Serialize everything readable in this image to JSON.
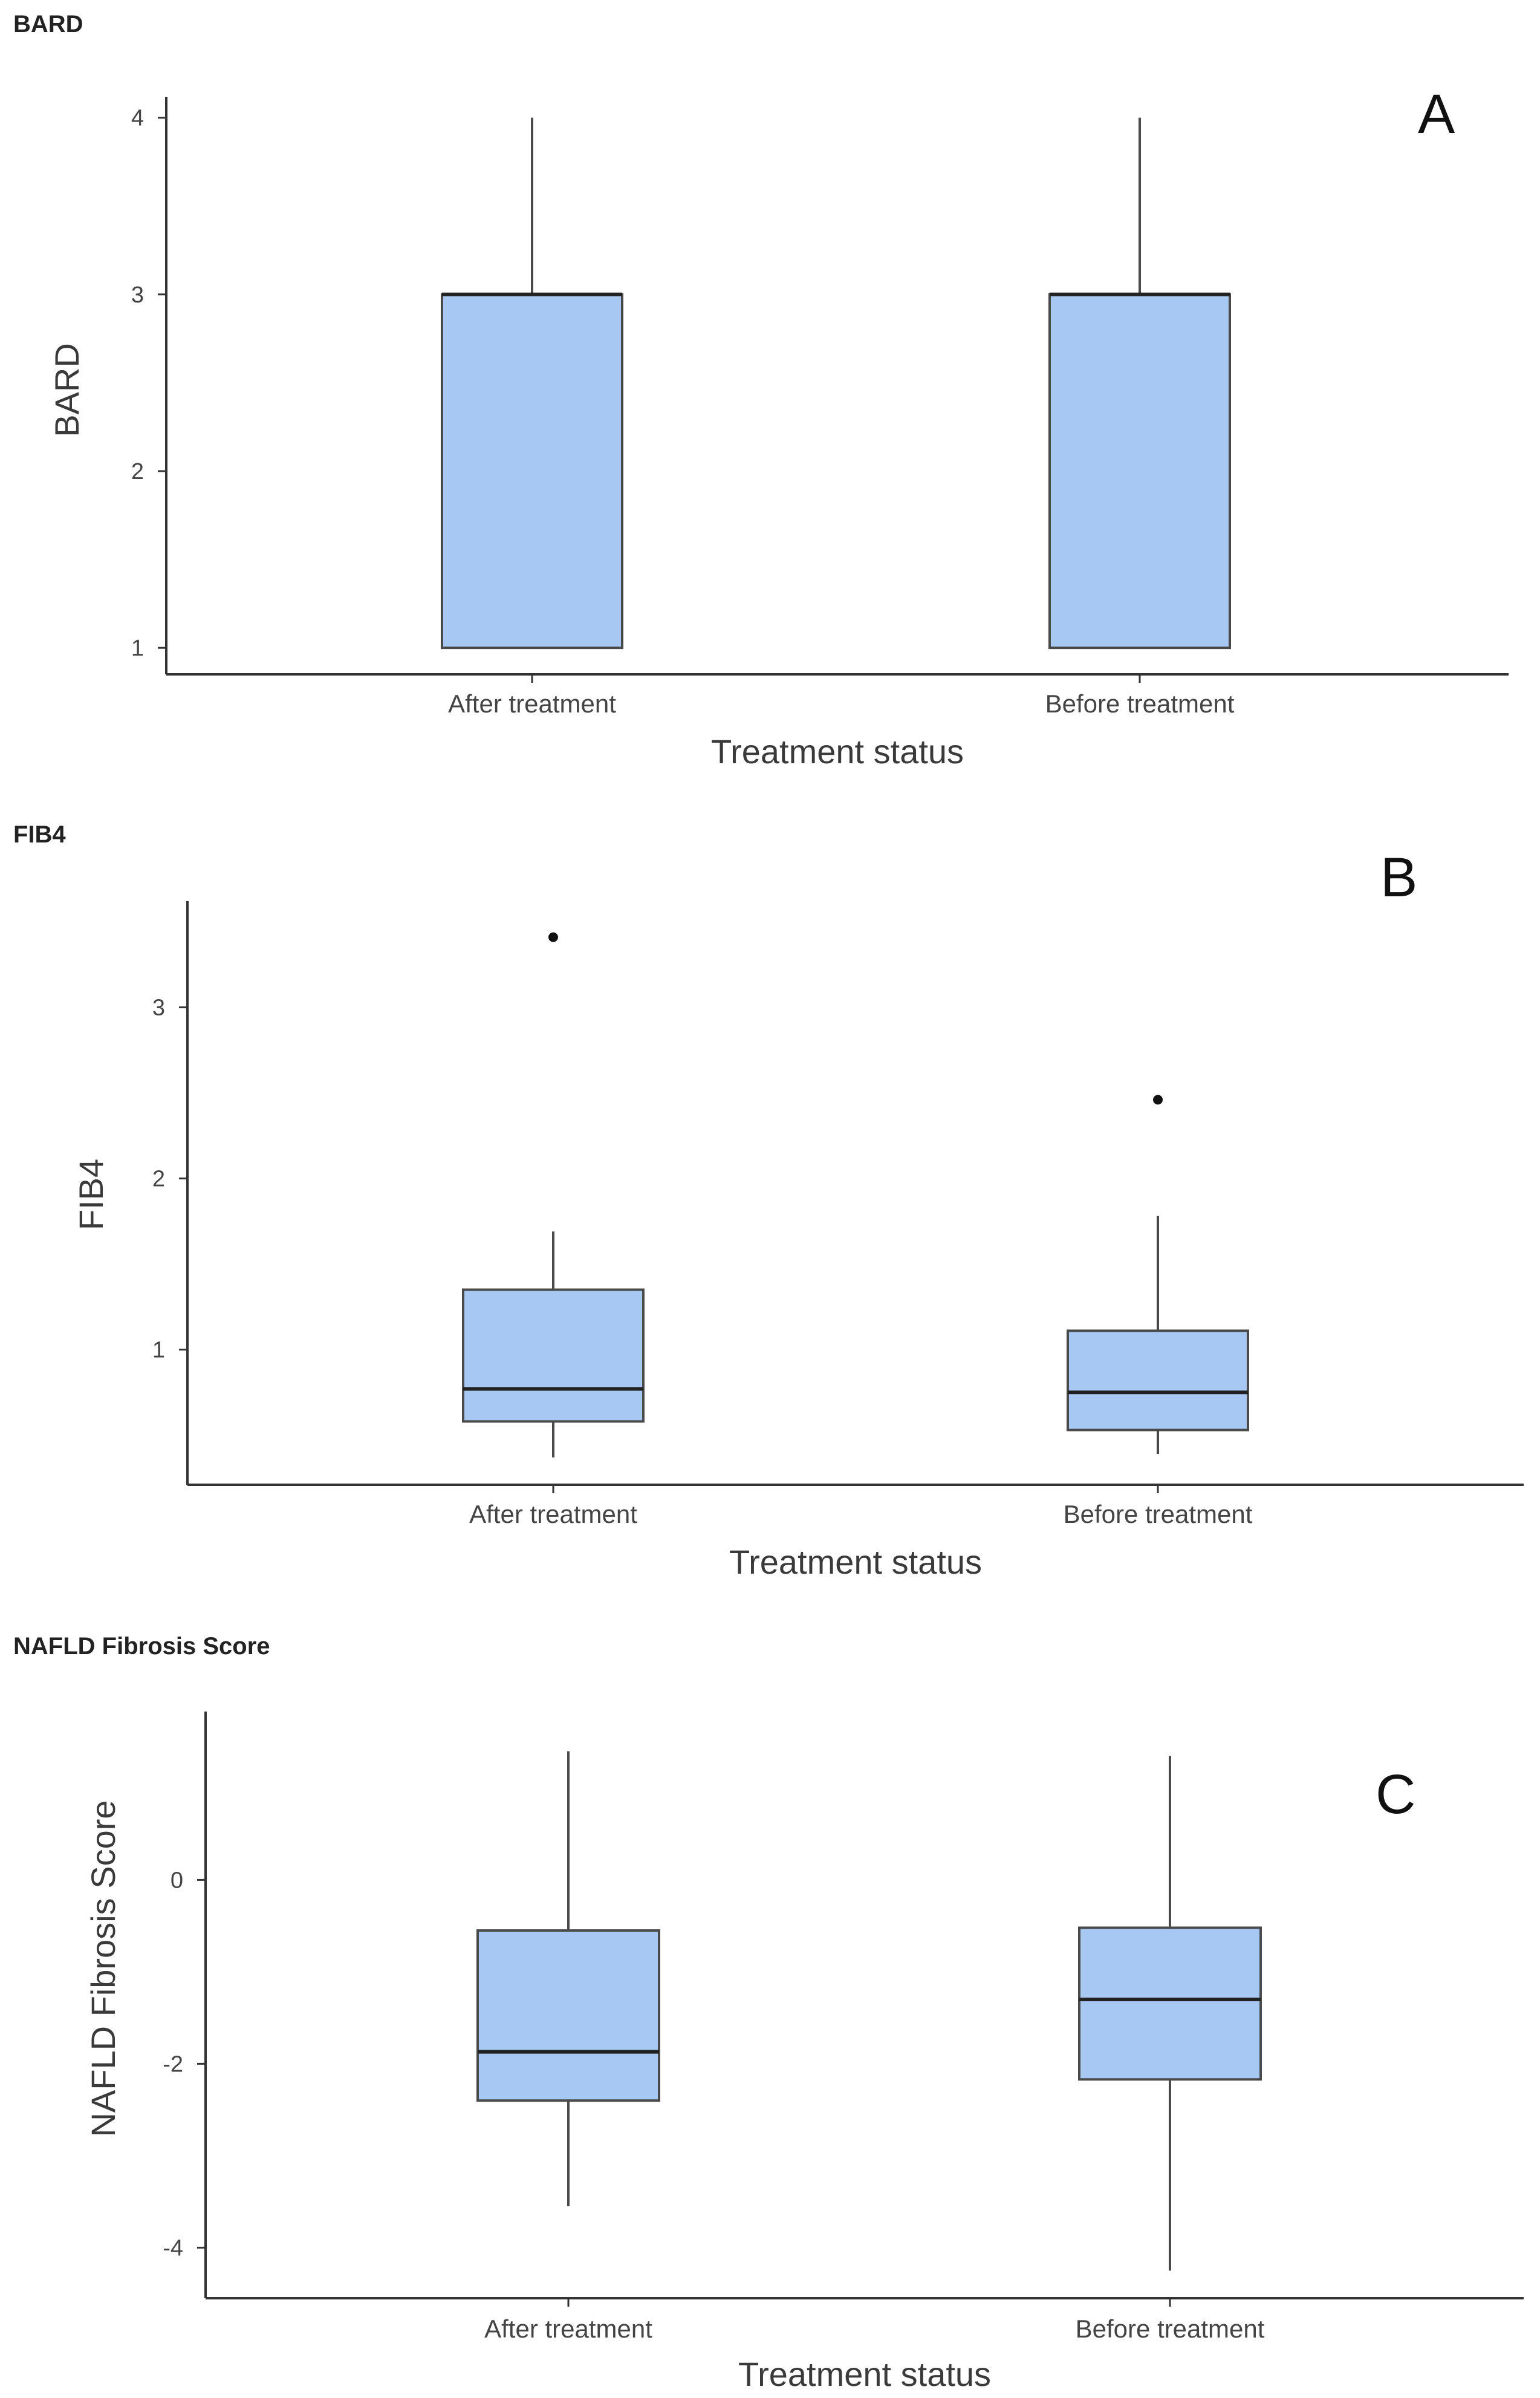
{
  "colors": {
    "box_fill": "#a7c8f2",
    "box_stroke": "#4a4a4a",
    "axis": "#333333",
    "outlier": "#111111"
  },
  "chart_data": [
    {
      "type": "box",
      "title": "BARD",
      "panel_letter": "A",
      "xlabel": "Treatment status",
      "ylabel": "BARD",
      "ylim": [
        0.85,
        4.05
      ],
      "yticks": [
        1,
        2,
        3,
        4
      ],
      "categories": [
        "After treatment",
        "Before treatment"
      ],
      "series": [
        {
          "name": "After treatment",
          "min": 1,
          "q1": 1,
          "median": 3,
          "q3": 3,
          "max": 4,
          "outliers": []
        },
        {
          "name": "Before treatment",
          "min": 1,
          "q1": 1,
          "median": 3,
          "q3": 3,
          "max": 4,
          "outliers": []
        }
      ]
    },
    {
      "type": "box",
      "title": "FIB4",
      "panel_letter": "B",
      "xlabel": "Treatment status",
      "ylabel": "FIB4",
      "ylim": [
        0.21,
        3.55
      ],
      "yticks": [
        1,
        2,
        3
      ],
      "categories": [
        "After treatment",
        "Before treatment"
      ],
      "series": [
        {
          "name": "After treatment",
          "min": 0.37,
          "q1": 0.58,
          "median": 0.77,
          "q3": 1.35,
          "max": 1.69,
          "outliers": [
            3.41
          ]
        },
        {
          "name": "Before treatment",
          "min": 0.39,
          "q1": 0.53,
          "median": 0.75,
          "q3": 1.11,
          "max": 1.78,
          "outliers": [
            2.46
          ]
        }
      ]
    },
    {
      "type": "box",
      "title": "NAFLD Fibrosis Score",
      "panel_letter": "C",
      "xlabel": "Treatment status",
      "ylabel": "NAFLD Fibrosis Score",
      "ylim": [
        -4.55,
        1.7
      ],
      "yticks": [
        -4,
        -2,
        0
      ],
      "categories": [
        "After treatment",
        "Before treatment"
      ],
      "series": [
        {
          "name": "After treatment",
          "min": -3.55,
          "q1": -2.4,
          "median": -1.87,
          "q3": -0.55,
          "max": 1.4,
          "outliers": []
        },
        {
          "name": "Before treatment",
          "min": -4.25,
          "q1": -2.17,
          "median": -1.3,
          "q3": -0.52,
          "max": 1.35,
          "outliers": []
        }
      ]
    }
  ]
}
